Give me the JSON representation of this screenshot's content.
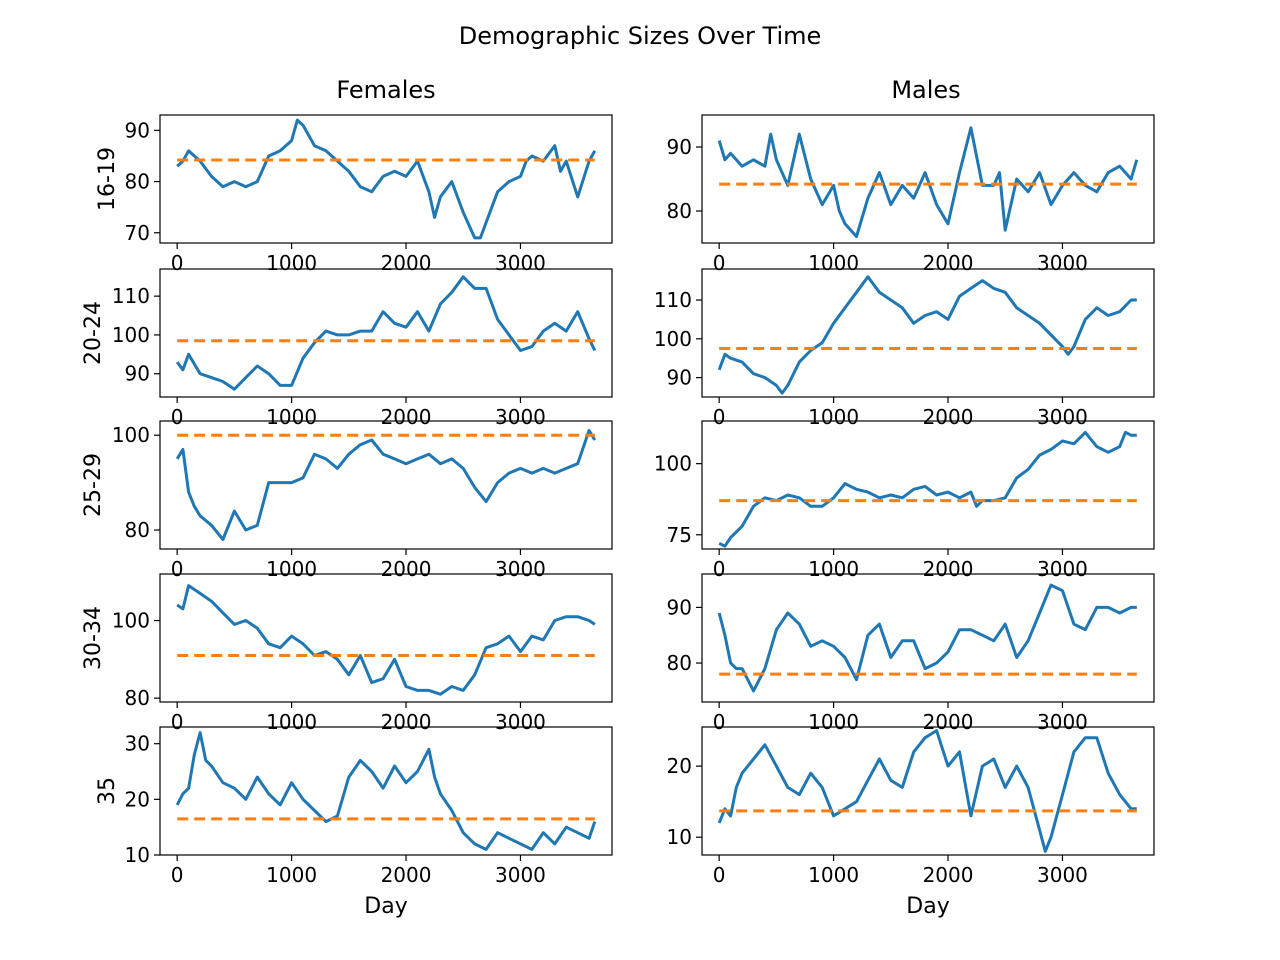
{
  "figure": {
    "title": "Demographic Sizes Over Time",
    "columns": [
      "Females",
      "Males"
    ],
    "xlabel": "Day"
  },
  "chart_data": [
    {
      "type": "line",
      "column": "Females",
      "ylabel": "16-19",
      "xlim": [
        -150,
        3800
      ],
      "ylim": [
        68,
        93
      ],
      "xticks": [
        0,
        1000,
        2000,
        3000
      ],
      "yticks": [
        70,
        80,
        90
      ],
      "hline": 84.2,
      "colors": {
        "line": "#1f77b4",
        "mean": "#ff7f0e"
      },
      "x": [
        0,
        50,
        100,
        200,
        300,
        400,
        500,
        600,
        700,
        800,
        900,
        1000,
        1050,
        1100,
        1200,
        1300,
        1400,
        1500,
        1600,
        1700,
        1800,
        1900,
        2000,
        2100,
        2200,
        2250,
        2300,
        2400,
        2500,
        2600,
        2650,
        2700,
        2800,
        2900,
        3000,
        3050,
        3100,
        3200,
        3300,
        3350,
        3400,
        3500,
        3600,
        3650
      ],
      "y": [
        83,
        84,
        86,
        84,
        81,
        79,
        80,
        79,
        80,
        85,
        86,
        88,
        92,
        91,
        87,
        86,
        84,
        82,
        79,
        78,
        81,
        82,
        81,
        84,
        78,
        73,
        77,
        80,
        74,
        69,
        69,
        72,
        78,
        80,
        81,
        84,
        85,
        84,
        87,
        82,
        84,
        77,
        84,
        86
      ]
    },
    {
      "type": "line",
      "column": "Males",
      "ylabel": "",
      "xlim": [
        -150,
        3800
      ],
      "ylim": [
        75,
        95
      ],
      "xticks": [
        0,
        1000,
        2000,
        3000
      ],
      "yticks": [
        80,
        90
      ],
      "hline": 84.2,
      "colors": {
        "line": "#1f77b4",
        "mean": "#ff7f0e"
      },
      "x": [
        0,
        50,
        100,
        200,
        300,
        400,
        450,
        500,
        600,
        700,
        800,
        900,
        1000,
        1050,
        1100,
        1200,
        1300,
        1400,
        1500,
        1600,
        1700,
        1800,
        1900,
        2000,
        2100,
        2200,
        2300,
        2400,
        2450,
        2500,
        2600,
        2700,
        2800,
        2900,
        3000,
        3100,
        3200,
        3300,
        3400,
        3500,
        3600,
        3650
      ],
      "y": [
        91,
        88,
        89,
        87,
        88,
        87,
        92,
        88,
        84,
        92,
        85,
        81,
        84,
        80,
        78,
        76,
        82,
        86,
        81,
        84,
        82,
        86,
        81,
        78,
        86,
        93,
        84,
        84,
        86,
        77,
        85,
        83,
        86,
        81,
        84,
        86,
        84,
        83,
        86,
        87,
        85,
        88
      ]
    },
    {
      "type": "line",
      "column": "Females",
      "ylabel": "20-24",
      "xlim": [
        -150,
        3800
      ],
      "ylim": [
        84,
        117
      ],
      "xticks": [
        0,
        1000,
        2000,
        3000
      ],
      "yticks": [
        90,
        100,
        110
      ],
      "hline": 98.5,
      "colors": {
        "line": "#1f77b4",
        "mean": "#ff7f0e"
      },
      "x": [
        0,
        50,
        100,
        200,
        300,
        400,
        500,
        600,
        700,
        800,
        900,
        1000,
        1100,
        1200,
        1300,
        1400,
        1500,
        1600,
        1700,
        1800,
        1900,
        2000,
        2100,
        2200,
        2300,
        2400,
        2500,
        2600,
        2700,
        2800,
        2900,
        3000,
        3100,
        3200,
        3300,
        3400,
        3500,
        3600,
        3650
      ],
      "y": [
        93,
        91,
        95,
        90,
        89,
        88,
        86,
        89,
        92,
        90,
        87,
        87,
        94,
        98,
        101,
        100,
        100,
        101,
        101,
        106,
        103,
        102,
        106,
        101,
        108,
        111,
        115,
        112,
        112,
        104,
        100,
        96,
        97,
        101,
        103,
        101,
        106,
        99,
        96
      ]
    },
    {
      "type": "line",
      "column": "Males",
      "ylabel": "",
      "xlim": [
        -150,
        3800
      ],
      "ylim": [
        85,
        118
      ],
      "xticks": [
        0,
        1000,
        2000,
        3000
      ],
      "yticks": [
        90,
        100,
        110
      ],
      "hline": 97.5,
      "colors": {
        "line": "#1f77b4",
        "mean": "#ff7f0e"
      },
      "x": [
        0,
        50,
        100,
        200,
        300,
        400,
        500,
        550,
        600,
        700,
        800,
        900,
        1000,
        1100,
        1200,
        1300,
        1400,
        1500,
        1600,
        1700,
        1800,
        1900,
        2000,
        2100,
        2200,
        2300,
        2400,
        2500,
        2600,
        2700,
        2800,
        2900,
        3000,
        3050,
        3100,
        3200,
        3300,
        3400,
        3500,
        3600,
        3650
      ],
      "y": [
        92,
        96,
        95,
        94,
        91,
        90,
        88,
        86,
        88,
        94,
        97,
        99,
        104,
        108,
        112,
        116,
        112,
        110,
        108,
        104,
        106,
        107,
        105,
        111,
        113,
        115,
        113,
        112,
        108,
        106,
        104,
        101,
        98,
        96,
        98,
        105,
        108,
        106,
        107,
        110,
        110
      ]
    },
    {
      "type": "line",
      "column": "Females",
      "ylabel": "25-29",
      "xlim": [
        -150,
        3800
      ],
      "ylim": [
        76,
        103
      ],
      "xticks": [
        0,
        1000,
        2000,
        3000
      ],
      "yticks": [
        80,
        100
      ],
      "hline": 100,
      "colors": {
        "line": "#1f77b4",
        "mean": "#ff7f0e"
      },
      "x": [
        0,
        50,
        100,
        150,
        200,
        300,
        400,
        500,
        600,
        700,
        800,
        900,
        1000,
        1100,
        1200,
        1300,
        1400,
        1500,
        1600,
        1700,
        1800,
        1900,
        2000,
        2100,
        2200,
        2300,
        2400,
        2500,
        2600,
        2700,
        2800,
        2900,
        3000,
        3100,
        3200,
        3300,
        3400,
        3500,
        3600,
        3650
      ],
      "y": [
        95,
        97,
        88,
        85,
        83,
        81,
        78,
        84,
        80,
        81,
        90,
        90,
        90,
        91,
        96,
        95,
        93,
        96,
        98,
        99,
        96,
        95,
        94,
        95,
        96,
        94,
        95,
        93,
        89,
        86,
        90,
        92,
        93,
        92,
        93,
        92,
        93,
        94,
        101,
        99
      ]
    },
    {
      "type": "line",
      "column": "Males",
      "ylabel": "",
      "xlim": [
        -150,
        3800
      ],
      "ylim": [
        70,
        115
      ],
      "xticks": [
        0,
        1000,
        2000,
        3000
      ],
      "yticks": [
        75,
        100
      ],
      "hline": 87,
      "colors": {
        "line": "#1f77b4",
        "mean": "#ff7f0e"
      },
      "x": [
        0,
        50,
        100,
        200,
        300,
        400,
        500,
        600,
        700,
        800,
        900,
        1000,
        1100,
        1200,
        1300,
        1400,
        1500,
        1600,
        1700,
        1800,
        1900,
        2000,
        2100,
        2200,
        2250,
        2300,
        2400,
        2500,
        2600,
        2700,
        2800,
        2900,
        3000,
        3100,
        3200,
        3300,
        3400,
        3500,
        3550,
        3600,
        3650
      ],
      "y": [
        72,
        71,
        74,
        78,
        85,
        88,
        87,
        89,
        88,
        85,
        85,
        88,
        93,
        91,
        90,
        88,
        89,
        88,
        91,
        92,
        89,
        90,
        88,
        90,
        85,
        87,
        87,
        88,
        95,
        98,
        103,
        105,
        108,
        107,
        111,
        106,
        104,
        106,
        111,
        110,
        110
      ]
    },
    {
      "type": "line",
      "column": "Females",
      "ylabel": "30-34",
      "xlim": [
        -150,
        3800
      ],
      "ylim": [
        79,
        112
      ],
      "xticks": [
        0,
        1000,
        2000,
        3000
      ],
      "yticks": [
        80,
        100
      ],
      "hline": 91,
      "colors": {
        "line": "#1f77b4",
        "mean": "#ff7f0e"
      },
      "x": [
        0,
        50,
        100,
        200,
        300,
        400,
        500,
        600,
        700,
        800,
        900,
        1000,
        1100,
        1200,
        1300,
        1400,
        1500,
        1600,
        1700,
        1800,
        1900,
        2000,
        2100,
        2200,
        2300,
        2400,
        2500,
        2600,
        2700,
        2800,
        2900,
        3000,
        3100,
        3200,
        3300,
        3400,
        3500,
        3600,
        3650
      ],
      "y": [
        104,
        103,
        109,
        107,
        105,
        102,
        99,
        100,
        98,
        94,
        93,
        96,
        94,
        91,
        92,
        90,
        86,
        91,
        84,
        85,
        90,
        83,
        82,
        82,
        81,
        83,
        82,
        86,
        93,
        94,
        96,
        92,
        96,
        95,
        100,
        101,
        101,
        100,
        99
      ]
    },
    {
      "type": "line",
      "column": "Males",
      "ylabel": "",
      "xlim": [
        -150,
        3800
      ],
      "ylim": [
        73,
        96
      ],
      "xticks": [
        0,
        1000,
        2000,
        3000
      ],
      "yticks": [
        80,
        90
      ],
      "hline": 78,
      "colors": {
        "line": "#1f77b4",
        "mean": "#ff7f0e"
      },
      "x": [
        0,
        50,
        100,
        150,
        200,
        250,
        300,
        400,
        500,
        600,
        700,
        800,
        900,
        1000,
        1100,
        1200,
        1300,
        1400,
        1500,
        1600,
        1700,
        1800,
        1900,
        2000,
        2100,
        2200,
        2300,
        2400,
        2500,
        2600,
        2700,
        2800,
        2900,
        3000,
        3100,
        3200,
        3300,
        3400,
        3500,
        3600,
        3650
      ],
      "y": [
        89,
        85,
        80,
        79,
        79,
        77,
        75,
        79,
        86,
        89,
        87,
        83,
        84,
        83,
        81,
        77,
        85,
        87,
        81,
        84,
        84,
        79,
        80,
        82,
        86,
        86,
        85,
        84,
        87,
        81,
        84,
        89,
        94,
        93,
        87,
        86,
        90,
        90,
        89,
        90,
        90
      ]
    },
    {
      "type": "line",
      "column": "Females",
      "ylabel": "35",
      "xlim": [
        -150,
        3800
      ],
      "ylim": [
        10,
        33
      ],
      "xticks": [
        0,
        1000,
        2000,
        3000
      ],
      "yticks": [
        10,
        20,
        30
      ],
      "hline": 16.5,
      "colors": {
        "line": "#1f77b4",
        "mean": "#ff7f0e"
      },
      "x": [
        0,
        50,
        100,
        150,
        200,
        250,
        300,
        400,
        500,
        600,
        700,
        800,
        900,
        1000,
        1100,
        1200,
        1300,
        1400,
        1500,
        1600,
        1700,
        1800,
        1900,
        2000,
        2100,
        2200,
        2250,
        2300,
        2400,
        2500,
        2600,
        2700,
        2800,
        2900,
        3000,
        3100,
        3200,
        3300,
        3400,
        3500,
        3600,
        3650
      ],
      "y": [
        19,
        21,
        22,
        28,
        32,
        27,
        26,
        23,
        22,
        20,
        24,
        21,
        19,
        23,
        20,
        18,
        16,
        17,
        24,
        27,
        25,
        22,
        26,
        23,
        25,
        29,
        24,
        21,
        18,
        14,
        12,
        11,
        14,
        13,
        12,
        11,
        14,
        12,
        15,
        14,
        13,
        16
      ]
    },
    {
      "type": "line",
      "column": "Males",
      "ylabel": "",
      "xlim": [
        -150,
        3800
      ],
      "ylim": [
        7.5,
        25.5
      ],
      "xticks": [
        0,
        1000,
        2000,
        3000
      ],
      "yticks": [
        10,
        20
      ],
      "hline": 13.7,
      "colors": {
        "line": "#1f77b4",
        "mean": "#ff7f0e"
      },
      "x": [
        0,
        50,
        100,
        150,
        200,
        300,
        400,
        500,
        600,
        700,
        800,
        900,
        1000,
        1100,
        1200,
        1300,
        1400,
        1500,
        1600,
        1700,
        1800,
        1900,
        2000,
        2100,
        2200,
        2300,
        2400,
        2500,
        2600,
        2700,
        2800,
        2850,
        2900,
        3000,
        3100,
        3200,
        3300,
        3400,
        3500,
        3600,
        3650
      ],
      "y": [
        12,
        14,
        13,
        17,
        19,
        21,
        23,
        20,
        17,
        16,
        19,
        17,
        13,
        14,
        15,
        18,
        21,
        18,
        17,
        22,
        24,
        25,
        20,
        22,
        13,
        20,
        21,
        17,
        20,
        17,
        11,
        8,
        10,
        16,
        22,
        24,
        24,
        19,
        16,
        14,
        14
      ]
    }
  ]
}
